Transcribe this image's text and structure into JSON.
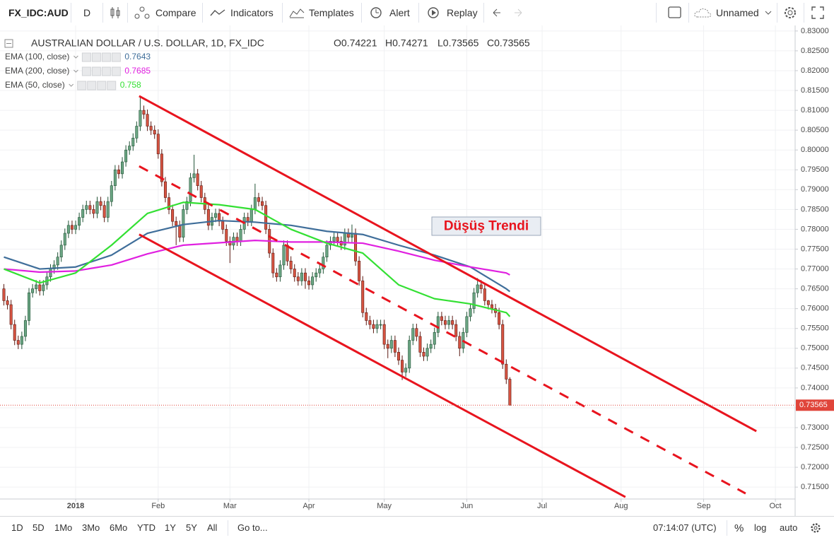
{
  "toolbar": {
    "symbol": "FX_IDC:AUD",
    "interval": "D",
    "compare": "Compare",
    "indicators": "Indicators",
    "templates": "Templates",
    "alert": "Alert",
    "replay": "Replay",
    "layout_name": "Unnamed"
  },
  "chart_data": {
    "type": "candlestick",
    "title": "AUSTRALIAN DOLLAR / U.S. DOLLAR, 1D, FX_IDC",
    "ohlc_labels": [
      "O0.74221",
      "H0.74271",
      "L0.73565",
      "C0.73565"
    ],
    "up_color": "#6ba583",
    "up_border": "#225437",
    "down_color": "#d75442",
    "down_border": "#5b1a13",
    "open": [
      0.765,
      0.762,
      0.761,
      0.756,
      0.752,
      0.751,
      0.753,
      0.757,
      0.764,
      0.765,
      0.766,
      0.7645,
      0.766,
      0.768,
      0.77,
      0.771,
      0.773,
      0.776,
      0.779,
      0.781,
      0.78,
      0.781,
      0.783,
      0.785,
      0.786,
      0.785,
      0.784,
      0.787,
      0.786,
      0.783,
      0.787,
      0.791,
      0.795,
      0.794,
      0.797,
      0.8,
      0.801,
      0.803,
      0.806,
      0.81,
      0.809,
      0.806,
      0.805,
      0.804,
      0.799,
      0.792,
      0.788,
      0.785,
      0.782,
      0.781,
      0.778,
      0.785,
      0.787,
      0.793,
      0.794,
      0.791,
      0.788,
      0.785,
      0.781,
      0.783,
      0.784,
      0.782,
      0.78,
      0.777,
      0.776,
      0.778,
      0.777,
      0.78,
      0.783,
      0.782,
      0.785,
      0.788,
      0.787,
      0.786,
      0.78,
      0.774,
      0.769,
      0.768,
      0.771,
      0.776,
      0.772,
      0.77,
      0.768,
      0.767,
      0.769,
      0.767,
      0.766,
      0.768,
      0.769,
      0.77,
      0.773,
      0.776,
      0.777,
      0.778,
      0.777,
      0.776,
      0.779,
      0.778,
      0.779,
      0.772,
      0.767,
      0.759,
      0.757,
      0.756,
      0.755,
      0.756,
      0.756,
      0.751,
      0.75,
      0.752,
      0.749,
      0.747,
      0.744,
      0.745,
      0.752,
      0.755,
      0.753,
      0.749,
      0.748,
      0.75,
      0.751,
      0.754,
      0.758,
      0.757,
      0.756,
      0.757,
      0.756,
      0.753,
      0.75,
      0.754,
      0.758,
      0.76,
      0.764,
      0.766,
      0.765,
      0.762,
      0.761,
      0.76,
      0.759,
      0.756,
      0.746,
      0.74221
    ],
    "high": [
      0.7662,
      0.7632,
      0.7622,
      0.7572,
      0.7532,
      0.7542,
      0.7582,
      0.7652,
      0.7662,
      0.7672,
      0.7672,
      0.7672,
      0.7692,
      0.7712,
      0.7722,
      0.7742,
      0.7772,
      0.7802,
      0.7822,
      0.7822,
      0.7822,
      0.7842,
      0.7862,
      0.7872,
      0.7872,
      0.7862,
      0.7882,
      0.7882,
      0.7872,
      0.7882,
      0.7922,
      0.7962,
      0.7962,
      0.7982,
      0.8012,
      0.8022,
      0.8042,
      0.8072,
      0.8136,
      0.8112,
      0.8102,
      0.8072,
      0.8062,
      0.8052,
      0.8002,
      0.7932,
      0.7892,
      0.7862,
      0.7832,
      0.7822,
      0.7862,
      0.7882,
      0.7942,
      0.7988,
      0.7952,
      0.7922,
      0.7892,
      0.7862,
      0.7842,
      0.7852,
      0.7852,
      0.7832,
      0.7812,
      0.7782,
      0.7792,
      0.7792,
      0.7812,
      0.7842,
      0.7842,
      0.7862,
      0.7915,
      0.7892,
      0.7882,
      0.7872,
      0.7812,
      0.7752,
      0.7702,
      0.7722,
      0.7772,
      0.7772,
      0.7732,
      0.7712,
      0.7692,
      0.7702,
      0.7702,
      0.7682,
      0.7692,
      0.7702,
      0.7712,
      0.7742,
      0.7772,
      0.7782,
      0.7792,
      0.7792,
      0.7782,
      0.7802,
      0.7802,
      0.7812,
      0.7802,
      0.7732,
      0.7682,
      0.7602,
      0.7582,
      0.7572,
      0.7572,
      0.7572,
      0.7572,
      0.7522,
      0.7532,
      0.7532,
      0.7502,
      0.7482,
      0.7462,
      0.7532,
      0.7562,
      0.7562,
      0.7542,
      0.7502,
      0.7512,
      0.7522,
      0.7552,
      0.7592,
      0.7592,
      0.7582,
      0.7582,
      0.7582,
      0.7572,
      0.7542,
      0.7552,
      0.7592,
      0.7612,
      0.7652,
      0.7677,
      0.7672,
      0.7662,
      0.7622,
      0.7622,
      0.7612,
      0.7602,
      0.7572,
      0.7472,
      0.74271
    ],
    "low": [
      0.7608,
      0.7598,
      0.7548,
      0.7508,
      0.7498,
      0.7498,
      0.7518,
      0.7558,
      0.7628,
      0.7638,
      0.7633,
      0.7633,
      0.7648,
      0.7668,
      0.7688,
      0.7698,
      0.7718,
      0.7748,
      0.7778,
      0.7788,
      0.7788,
      0.7798,
      0.7818,
      0.7838,
      0.7838,
      0.7828,
      0.7828,
      0.7848,
      0.7818,
      0.7818,
      0.7858,
      0.7898,
      0.7928,
      0.7928,
      0.7958,
      0.7988,
      0.7998,
      0.8018,
      0.8048,
      0.8078,
      0.8048,
      0.8038,
      0.8028,
      0.7978,
      0.7908,
      0.7868,
      0.7838,
      0.7808,
      0.776,
      0.7768,
      0.7768,
      0.7838,
      0.7858,
      0.7918,
      0.7898,
      0.7868,
      0.7838,
      0.7798,
      0.7798,
      0.7818,
      0.7808,
      0.7788,
      0.7758,
      0.7715,
      0.7748,
      0.7758,
      0.7758,
      0.7788,
      0.7808,
      0.7808,
      0.7838,
      0.7858,
      0.7848,
      0.7788,
      0.7728,
      0.7678,
      0.7668,
      0.7668,
      0.7698,
      0.7708,
      0.7688,
      0.7668,
      0.7658,
      0.7658,
      0.765,
      0.7648,
      0.7648,
      0.7668,
      0.7678,
      0.7688,
      0.7718,
      0.7748,
      0.7758,
      0.7758,
      0.7748,
      0.7748,
      0.7768,
      0.7768,
      0.7708,
      0.7658,
      0.7578,
      0.7558,
      0.7548,
      0.7538,
      0.7538,
      0.7548,
      0.7498,
      0.7475,
      0.7488,
      0.7478,
      0.7458,
      0.742,
      0.7428,
      0.7438,
      0.7508,
      0.7518,
      0.7478,
      0.7468,
      0.7468,
      0.7488,
      0.7498,
      0.7528,
      0.7558,
      0.7548,
      0.7548,
      0.7548,
      0.7518,
      0.748,
      0.7488,
      0.7528,
      0.7568,
      0.7588,
      0.7628,
      0.7638,
      0.7608,
      0.7598,
      0.7588,
      0.7578,
      0.7548,
      0.7448,
      0.741,
      0.73565
    ],
    "close": [
      0.762,
      0.761,
      0.756,
      0.752,
      0.751,
      0.753,
      0.757,
      0.764,
      0.765,
      0.766,
      0.7645,
      0.766,
      0.768,
      0.77,
      0.771,
      0.773,
      0.776,
      0.779,
      0.781,
      0.78,
      0.781,
      0.783,
      0.785,
      0.786,
      0.785,
      0.784,
      0.787,
      0.786,
      0.783,
      0.787,
      0.791,
      0.795,
      0.794,
      0.797,
      0.8,
      0.801,
      0.803,
      0.806,
      0.81,
      0.809,
      0.806,
      0.805,
      0.804,
      0.799,
      0.792,
      0.788,
      0.785,
      0.782,
      0.781,
      0.778,
      0.785,
      0.787,
      0.793,
      0.794,
      0.791,
      0.788,
      0.785,
      0.781,
      0.783,
      0.784,
      0.782,
      0.78,
      0.777,
      0.776,
      0.778,
      0.777,
      0.78,
      0.783,
      0.782,
      0.785,
      0.788,
      0.787,
      0.786,
      0.78,
      0.774,
      0.769,
      0.768,
      0.771,
      0.776,
      0.772,
      0.77,
      0.768,
      0.767,
      0.769,
      0.767,
      0.766,
      0.768,
      0.769,
      0.77,
      0.773,
      0.776,
      0.777,
      0.778,
      0.777,
      0.776,
      0.779,
      0.778,
      0.779,
      0.772,
      0.767,
      0.759,
      0.757,
      0.756,
      0.755,
      0.756,
      0.756,
      0.751,
      0.75,
      0.752,
      0.749,
      0.747,
      0.744,
      0.745,
      0.752,
      0.755,
      0.753,
      0.749,
      0.748,
      0.75,
      0.751,
      0.754,
      0.758,
      0.757,
      0.756,
      0.757,
      0.756,
      0.753,
      0.75,
      0.754,
      0.758,
      0.76,
      0.764,
      0.766,
      0.765,
      0.762,
      0.761,
      0.76,
      0.759,
      0.756,
      0.746,
      0.74221,
      0.73565
    ],
    "series": [
      {
        "name": "EMA (100, close)",
        "color": "#3f6e9a",
        "x": [
          0,
          10,
          20,
          30,
          40,
          50,
          60,
          70,
          80,
          90,
          100,
          110,
          120,
          130,
          140,
          141
        ],
        "values": [
          0.773,
          0.77,
          0.7705,
          0.7735,
          0.779,
          0.7812,
          0.7822,
          0.7818,
          0.781,
          0.7795,
          0.7787,
          0.776,
          0.7735,
          0.7705,
          0.765,
          0.7643
        ]
      },
      {
        "name": "EMA (200, close)",
        "color": "#e020e0",
        "x": [
          0,
          10,
          20,
          30,
          40,
          50,
          60,
          70,
          80,
          90,
          100,
          110,
          120,
          130,
          140,
          141
        ],
        "values": [
          0.77,
          0.7692,
          0.7695,
          0.771,
          0.7738,
          0.776,
          0.7766,
          0.7772,
          0.7768,
          0.7768,
          0.7765,
          0.7745,
          0.7722,
          0.7705,
          0.769,
          0.7685
        ]
      },
      {
        "name": "EMA (50, close)",
        "color": "#33e033",
        "x": [
          0,
          10,
          20,
          30,
          40,
          50,
          60,
          70,
          80,
          90,
          100,
          110,
          120,
          130,
          140,
          141
        ],
        "values": [
          0.77,
          0.7665,
          0.769,
          0.776,
          0.784,
          0.7868,
          0.7862,
          0.785,
          0.78,
          0.7765,
          0.774,
          0.766,
          0.7625,
          0.7612,
          0.759,
          0.758
        ]
      }
    ],
    "trend_lines": [
      {
        "x": [
          37.7,
          209.7
        ],
        "y": [
          0.8136,
          0.7291
        ],
        "color": "#e8141e",
        "dashed": false
      },
      {
        "x": [
          37.7,
          206.7
        ],
        "y": [
          0.7959,
          0.7134
        ],
        "color": "#e8141e",
        "dashed": true
      },
      {
        "x": [
          37.7,
          173.2
        ],
        "y": [
          0.7787,
          0.7125
        ],
        "color": "#e8141e",
        "dashed": false
      }
    ],
    "annotation": "Düşüş Trendi",
    "xlim": [
      -1.08,
      220.5
    ],
    "ylim": [
      0.712,
      0.8314
    ],
    "xticks": [
      {
        "value": 20,
        "label": "2018"
      },
      {
        "value": 43,
        "label": "Feb"
      },
      {
        "value": 63,
        "label": "Mar"
      },
      {
        "value": 85,
        "label": "Apr"
      },
      {
        "value": 106,
        "label": "May"
      },
      {
        "value": 129,
        "label": "Jun"
      },
      {
        "value": 150,
        "label": "Jul"
      },
      {
        "value": 172,
        "label": "Aug"
      },
      {
        "value": 195,
        "label": "Sep"
      },
      {
        "value": 215,
        "label": "Oct"
      }
    ],
    "yticks": [
      {
        "value": 0.715,
        "label": "0.71500"
      },
      {
        "value": 0.72,
        "label": "0.72000"
      },
      {
        "value": 0.725,
        "label": "0.72500"
      },
      {
        "value": 0.73,
        "label": "0.73000"
      },
      {
        "value": 0.735,
        "label": "0.73500"
      },
      {
        "value": 0.74,
        "label": "0.74000"
      },
      {
        "value": 0.745,
        "label": "0.74500"
      },
      {
        "value": 0.75,
        "label": "0.75000"
      },
      {
        "value": 0.755,
        "label": "0.75500"
      },
      {
        "value": 0.76,
        "label": "0.76000"
      },
      {
        "value": 0.765,
        "label": "0.76500"
      },
      {
        "value": 0.77,
        "label": "0.77000"
      },
      {
        "value": 0.775,
        "label": "0.77500"
      },
      {
        "value": 0.78,
        "label": "0.78000"
      },
      {
        "value": 0.785,
        "label": "0.78500"
      },
      {
        "value": 0.79,
        "label": "0.79000"
      },
      {
        "value": 0.795,
        "label": "0.79500"
      },
      {
        "value": 0.8,
        "label": "0.80000"
      },
      {
        "value": 0.805,
        "label": "0.80500"
      },
      {
        "value": 0.81,
        "label": "0.81000"
      },
      {
        "value": 0.815,
        "label": "0.81500"
      },
      {
        "value": 0.82,
        "label": "0.82000"
      },
      {
        "value": 0.825,
        "label": "0.82500"
      },
      {
        "value": 0.83,
        "label": "0.83000"
      }
    ],
    "grid": true,
    "last_price_line": true,
    "last_price_color": "#e0453a"
  },
  "bottom_bar": {
    "ranges": [
      "1D",
      "5D",
      "1Mo",
      "3Mo",
      "6Mo",
      "YTD",
      "1Y",
      "5Y",
      "All"
    ],
    "goto": "Go to...",
    "clock": "07:14:07 (UTC)",
    "percent": "%",
    "log": "log",
    "auto": "auto"
  }
}
